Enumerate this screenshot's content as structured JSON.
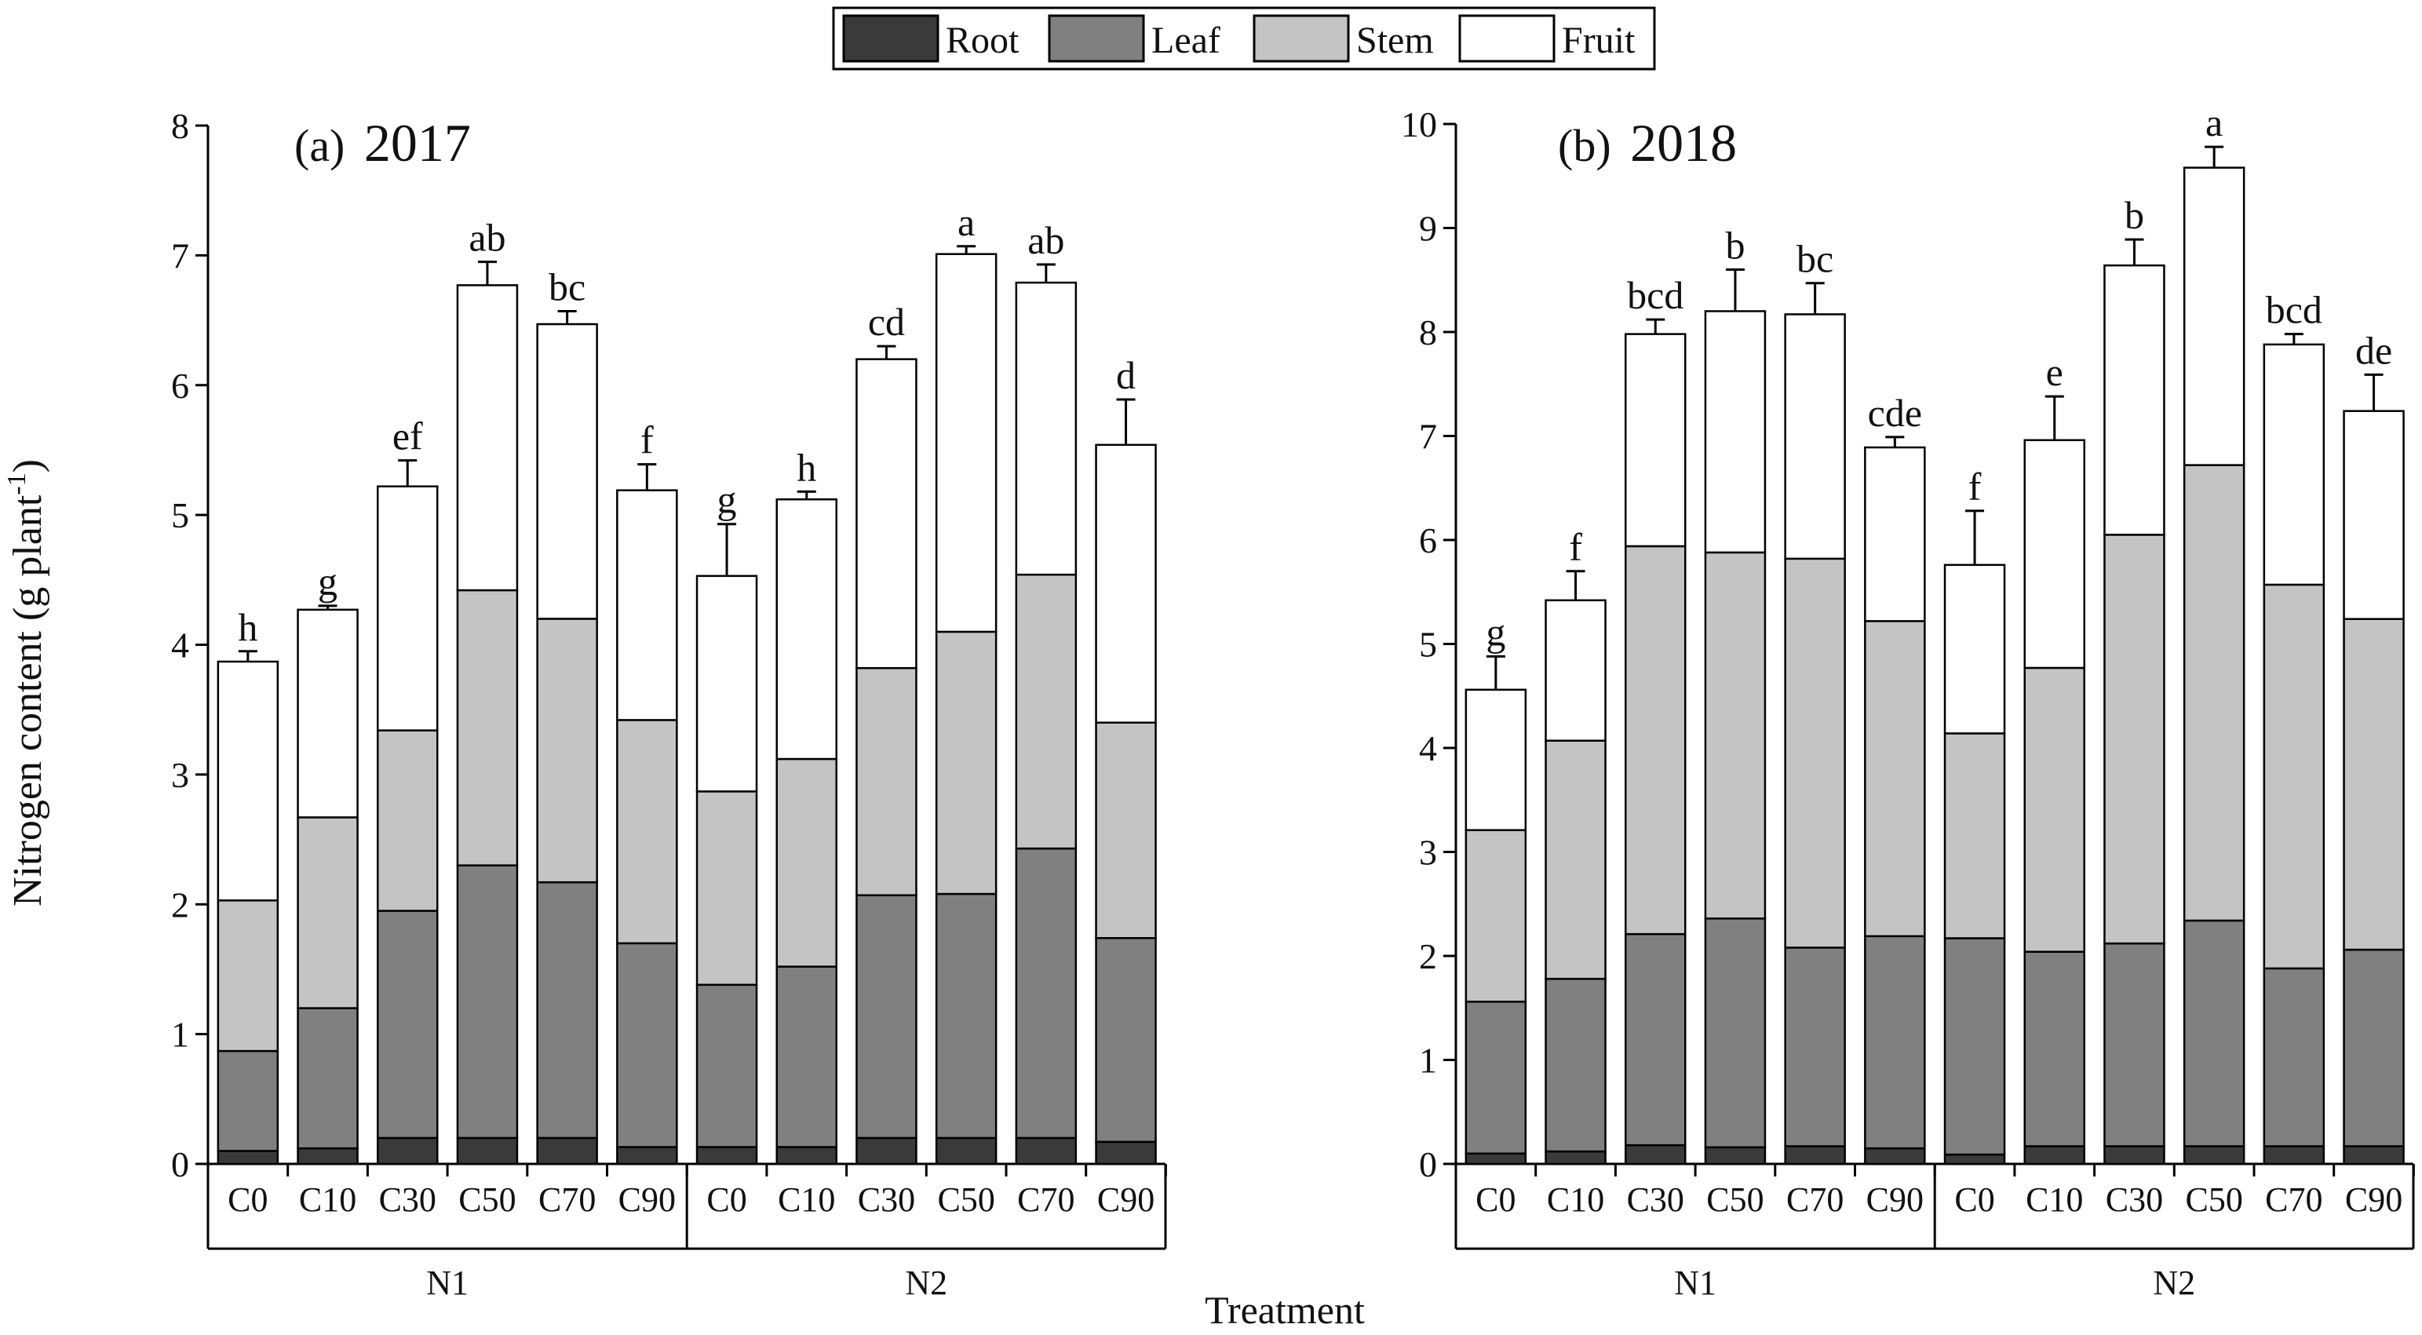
{
  "figure": {
    "y_axis_label_main": "Nitrogen content (g plant",
    "y_axis_label_sup": "-1",
    "y_axis_label_close": ")",
    "x_axis_label": "Treatment"
  },
  "legend": {
    "items": [
      {
        "label": "Root",
        "color": "#3a3a3a"
      },
      {
        "label": "Leaf",
        "color": "#808080"
      },
      {
        "label": "Stem",
        "color": "#c4c4c4"
      },
      {
        "label": "Fruit",
        "color": "#ffffff"
      }
    ]
  },
  "chart_data": [
    {
      "type": "bar",
      "stacked": true,
      "title": "(a)",
      "year": "2017",
      "ylabel": "Nitrogen content (g plant-1)",
      "xlabel": "Treatment",
      "ylim": [
        0,
        8
      ],
      "yticks": [
        0,
        1,
        2,
        3,
        4,
        5,
        6,
        7,
        8
      ],
      "groups": [
        "N1",
        "N2"
      ],
      "categories": [
        "C0",
        "C10",
        "C30",
        "C50",
        "C70",
        "C90",
        "C0",
        "C10",
        "C30",
        "C50",
        "C70",
        "C90"
      ],
      "series": [
        {
          "name": "Root",
          "values": [
            0.1,
            0.12,
            0.2,
            0.2,
            0.2,
            0.13,
            0.13,
            0.13,
            0.2,
            0.2,
            0.2,
            0.17
          ]
        },
        {
          "name": "Leaf",
          "values": [
            0.77,
            1.08,
            1.75,
            2.1,
            1.97,
            1.57,
            1.25,
            1.39,
            1.87,
            1.88,
            2.23,
            1.57
          ]
        },
        {
          "name": "Stem",
          "values": [
            1.16,
            1.47,
            1.39,
            2.12,
            2.03,
            1.72,
            1.49,
            1.6,
            1.75,
            2.02,
            2.11,
            1.66
          ]
        },
        {
          "name": "Fruit",
          "values": [
            1.84,
            1.6,
            1.88,
            2.35,
            2.27,
            1.77,
            1.66,
            2.0,
            2.38,
            2.91,
            2.25,
            2.14
          ]
        }
      ],
      "errors": [
        0.08,
        0.03,
        0.2,
        0.18,
        0.1,
        0.2,
        0.4,
        0.06,
        0.1,
        0.06,
        0.14,
        0.35
      ],
      "sig_letters": [
        "h",
        "g",
        "ef",
        "ab",
        "bc",
        "f",
        "g",
        "h",
        "cd",
        "a",
        "ab",
        "d"
      ]
    },
    {
      "type": "bar",
      "stacked": true,
      "title": "(b)",
      "year": "2018",
      "ylabel": "Nitrogen content (g plant-1)",
      "xlabel": "Treatment",
      "ylim": [
        0,
        10
      ],
      "yticks": [
        0,
        1,
        2,
        3,
        4,
        5,
        6,
        7,
        8,
        9,
        10
      ],
      "groups": [
        "N1",
        "N2"
      ],
      "categories": [
        "C0",
        "C10",
        "C30",
        "C50",
        "C70",
        "C90",
        "C0",
        "C10",
        "C30",
        "C50",
        "C70",
        "C90"
      ],
      "series": [
        {
          "name": "Root",
          "values": [
            0.1,
            0.12,
            0.18,
            0.16,
            0.17,
            0.15,
            0.09,
            0.17,
            0.17,
            0.17,
            0.17,
            0.17
          ]
        },
        {
          "name": "Leaf",
          "values": [
            1.46,
            1.66,
            2.03,
            2.2,
            1.91,
            2.04,
            2.08,
            1.87,
            1.95,
            2.17,
            1.71,
            1.89
          ]
        },
        {
          "name": "Stem",
          "values": [
            1.65,
            2.29,
            3.73,
            3.52,
            3.74,
            3.03,
            1.97,
            2.73,
            3.93,
            4.38,
            3.69,
            3.18
          ]
        },
        {
          "name": "Fruit",
          "values": [
            1.35,
            1.35,
            2.04,
            2.32,
            2.35,
            1.67,
            1.62,
            2.19,
            2.59,
            2.86,
            2.31,
            2.0
          ]
        }
      ],
      "errors": [
        0.32,
        0.28,
        0.14,
        0.4,
        0.3,
        0.1,
        0.52,
        0.42,
        0.25,
        0.2,
        0.1,
        0.35
      ],
      "sig_letters": [
        "g",
        "f",
        "bcd",
        "b",
        "bc",
        "cde",
        "f",
        "e",
        "b",
        "a",
        "bcd",
        "de"
      ]
    }
  ]
}
